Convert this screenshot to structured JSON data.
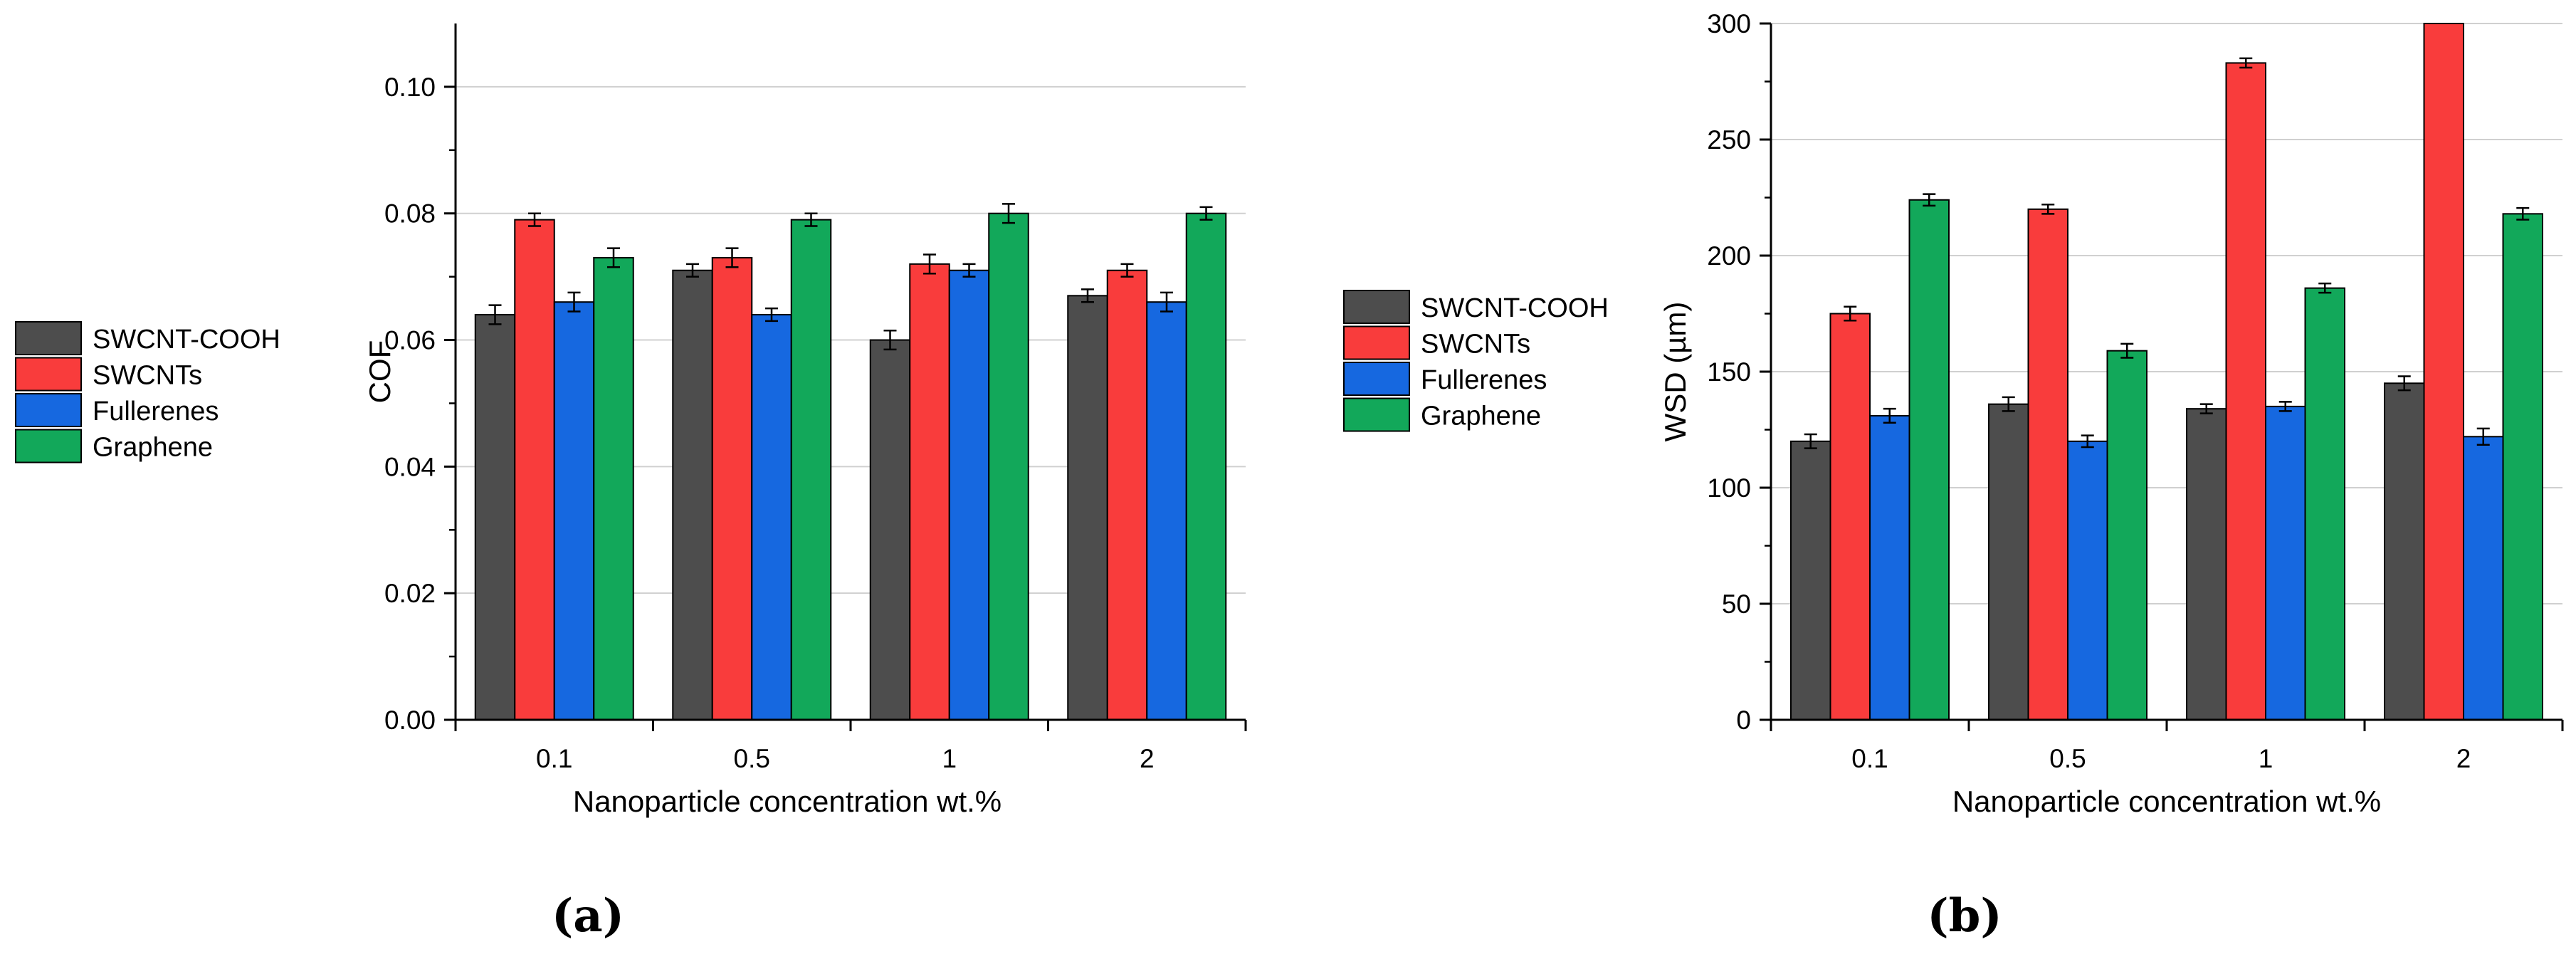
{
  "colors": {
    "SWCNT-COOH": "#4d4d4d",
    "SWCNTs": "#f93c3c",
    "Fullerenes": "#1668e0",
    "Graphene": "#12a85a",
    "gridline": "#d0d0d0",
    "axis": "#000000"
  },
  "chart_data": [
    {
      "panel": "(a)",
      "type": "bar",
      "ylabel": "COF",
      "xlabel": "Nanoparticle concentration wt.%",
      "categories": [
        "0.1",
        "0.5",
        "1",
        "2"
      ],
      "ylim": [
        0,
        0.11
      ],
      "yticks": [
        0,
        0.02,
        0.04,
        0.06,
        0.08,
        0.1
      ],
      "ytick_labels": [
        "0.00",
        "0.02",
        "0.04",
        "0.06",
        "0.08",
        "0.10"
      ],
      "grid": true,
      "legend_position": "left",
      "series": [
        {
          "name": "SWCNT-COOH",
          "values": [
            0.064,
            0.071,
            0.06,
            0.067
          ],
          "errors": [
            0.0015,
            0.001,
            0.0015,
            0.001
          ]
        },
        {
          "name": "SWCNTs",
          "values": [
            0.079,
            0.073,
            0.072,
            0.071
          ],
          "errors": [
            0.001,
            0.0015,
            0.0015,
            0.001
          ]
        },
        {
          "name": "Fullerenes",
          "values": [
            0.066,
            0.064,
            0.071,
            0.066
          ],
          "errors": [
            0.0015,
            0.001,
            0.001,
            0.0015
          ]
        },
        {
          "name": "Graphene",
          "values": [
            0.073,
            0.079,
            0.08,
            0.08
          ],
          "errors": [
            0.0015,
            0.001,
            0.0015,
            0.001
          ]
        }
      ]
    },
    {
      "panel": "(b)",
      "type": "bar",
      "ylabel": "WSD (µm)",
      "xlabel": "Nanoparticle concentration wt.%",
      "categories": [
        "0.1",
        "0.5",
        "1",
        "2"
      ],
      "ylim": [
        0,
        300
      ],
      "yticks": [
        0,
        50,
        100,
        150,
        200,
        250,
        300
      ],
      "ytick_labels": [
        "0",
        "50",
        "100",
        "150",
        "200",
        "250",
        "300"
      ],
      "grid": true,
      "legend_position": "left",
      "series": [
        {
          "name": "SWCNT-COOH",
          "values": [
            120,
            136,
            134,
            145
          ],
          "errors": [
            3,
            3,
            2,
            3
          ]
        },
        {
          "name": "SWCNTs",
          "values": [
            175,
            220,
            283,
            300
          ],
          "errors": [
            3,
            2,
            2,
            0
          ]
        },
        {
          "name": "Fullerenes",
          "values": [
            131,
            120,
            135,
            122
          ],
          "errors": [
            3,
            2.5,
            2,
            3.5
          ]
        },
        {
          "name": "Graphene",
          "values": [
            224,
            159,
            186,
            218
          ],
          "errors": [
            2.5,
            3,
            2,
            2.5
          ]
        }
      ]
    }
  ]
}
